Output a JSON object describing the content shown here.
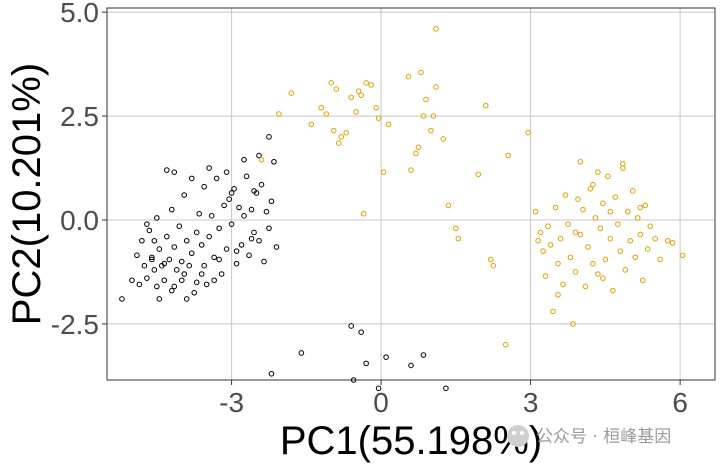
{
  "chart_data": {
    "type": "scatter",
    "xlabel": "PC1(55.198%)",
    "ylabel": "PC2(10.201%)",
    "xlim": [
      -5.5,
      6.7
    ],
    "ylim": [
      -3.85,
      5.1
    ],
    "xticks": [
      -3,
      0,
      3,
      6
    ],
    "xtick_labels": [
      "-3",
      "0",
      "3",
      "6"
    ],
    "yticks": [
      -2.5,
      0.0,
      2.5,
      5.0
    ],
    "ytick_labels": [
      "-2.5",
      "0.0",
      "2.5",
      "5.0"
    ],
    "grid": true,
    "legend": false,
    "marker": "open-circle",
    "series": [
      {
        "color": "#000000",
        "points": [
          [
            -5.2,
            -1.9
          ],
          [
            -5.0,
            -1.45
          ],
          [
            -4.9,
            -0.85
          ],
          [
            -4.8,
            -0.5
          ],
          [
            -4.75,
            -1.1
          ],
          [
            -4.7,
            -1.4
          ],
          [
            -4.65,
            -0.25
          ],
          [
            -4.6,
            -0.9
          ],
          [
            -4.55,
            -1.2
          ],
          [
            -4.5,
            -1.6
          ],
          [
            -4.5,
            0.05
          ],
          [
            -4.45,
            -0.7
          ],
          [
            -4.4,
            -1.1
          ],
          [
            -4.35,
            -1.45
          ],
          [
            -4.3,
            -0.4
          ],
          [
            -4.25,
            -0.95
          ],
          [
            -4.2,
            -1.7
          ],
          [
            -4.2,
            0.25
          ],
          [
            -4.15,
            -0.65
          ],
          [
            -4.1,
            -1.2
          ],
          [
            -4.05,
            -0.15
          ],
          [
            -4.0,
            -1.0
          ],
          [
            -4.0,
            -1.45
          ],
          [
            -3.95,
            0.6
          ],
          [
            -3.9,
            -0.5
          ],
          [
            -3.85,
            -1.1
          ],
          [
            -3.8,
            -0.8
          ],
          [
            -3.75,
            -1.75
          ],
          [
            -3.7,
            -0.3
          ],
          [
            -3.65,
            0.15
          ],
          [
            -3.6,
            -1.3
          ],
          [
            -3.6,
            -0.6
          ],
          [
            -3.55,
            0.8
          ],
          [
            -3.5,
            -1.55
          ],
          [
            -3.45,
            -0.4
          ],
          [
            -3.4,
            0.1
          ],
          [
            -3.35,
            -0.9
          ],
          [
            -3.3,
            1.0
          ],
          [
            -3.25,
            -0.2
          ],
          [
            -3.2,
            -1.3
          ],
          [
            -3.15,
            0.35
          ],
          [
            -3.1,
            -0.7
          ],
          [
            -3.05,
            0.5
          ],
          [
            -3.0,
            -0.1
          ],
          [
            -2.95,
            0.75
          ],
          [
            -2.9,
            -1.05
          ],
          [
            -2.85,
            0.3
          ],
          [
            -2.8,
            -0.6
          ],
          [
            -2.75,
            0.1
          ],
          [
            -2.7,
            1.05
          ],
          [
            -2.65,
            -0.85
          ],
          [
            -2.6,
            0.25
          ],
          [
            -2.55,
            -0.3
          ],
          [
            -2.5,
            0.65
          ],
          [
            -2.45,
            -0.5
          ],
          [
            -2.4,
            0.85
          ],
          [
            -2.35,
            -1.0
          ],
          [
            -2.3,
            0.2
          ],
          [
            -2.25,
            -0.2
          ],
          [
            -2.2,
            0.45
          ],
          [
            -2.15,
            1.4
          ],
          [
            -2.1,
            -0.65
          ],
          [
            -4.3,
            1.2
          ],
          [
            -4.15,
            1.15
          ],
          [
            -3.8,
            1.0
          ],
          [
            -3.45,
            1.25
          ],
          [
            -3.1,
            1.15
          ],
          [
            -2.75,
            1.45
          ],
          [
            -2.45,
            1.55
          ],
          [
            -2.25,
            2.0
          ],
          [
            -4.7,
            -0.1
          ],
          [
            -4.55,
            -0.5
          ],
          [
            -3.95,
            -1.3
          ],
          [
            -3.55,
            -1.1
          ],
          [
            -3.25,
            -0.95
          ],
          [
            -2.6,
            -0.45
          ],
          [
            -1.6,
            -3.2
          ],
          [
            -2.2,
            -3.7
          ],
          [
            -0.55,
            -3.85
          ],
          [
            -0.6,
            -2.55
          ],
          [
            -0.4,
            -2.7
          ],
          [
            -0.3,
            -3.45
          ],
          [
            -0.05,
            -4.05
          ],
          [
            0.1,
            -3.3
          ],
          [
            0.6,
            -3.5
          ],
          [
            0.85,
            -3.25
          ],
          [
            1.3,
            -4.05
          ],
          [
            -4.85,
            -1.55
          ],
          [
            -4.45,
            -1.9
          ],
          [
            -4.15,
            -1.6
          ],
          [
            -3.9,
            -1.9
          ],
          [
            -3.7,
            -1.5
          ],
          [
            -3.35,
            -1.45
          ],
          [
            -3.0,
            0.65
          ],
          [
            -2.9,
            -0.75
          ],
          [
            -2.55,
            0.7
          ],
          [
            -4.6,
            -0.95
          ],
          [
            -4.35,
            -1.05
          ]
        ]
      },
      {
        "color": "#E69F00",
        "points": [
          [
            -2.4,
            1.45
          ],
          [
            -2.05,
            2.55
          ],
          [
            -1.8,
            3.05
          ],
          [
            -1.4,
            2.3
          ],
          [
            -1.2,
            2.7
          ],
          [
            -1.1,
            2.55
          ],
          [
            -1.0,
            3.3
          ],
          [
            -0.95,
            2.15
          ],
          [
            -0.9,
            3.15
          ],
          [
            -0.85,
            1.85
          ],
          [
            -0.8,
            2.0
          ],
          [
            -0.7,
            2.1
          ],
          [
            -0.6,
            2.95
          ],
          [
            -0.5,
            2.6
          ],
          [
            -0.45,
            3.1
          ],
          [
            -0.4,
            3.0
          ],
          [
            -0.35,
            0.15
          ],
          [
            -0.3,
            3.3
          ],
          [
            -0.2,
            3.25
          ],
          [
            -0.1,
            2.7
          ],
          [
            -0.05,
            2.45
          ],
          [
            0.05,
            1.15
          ],
          [
            0.15,
            2.3
          ],
          [
            0.55,
            3.45
          ],
          [
            0.6,
            1.2
          ],
          [
            0.7,
            1.6
          ],
          [
            0.75,
            1.75
          ],
          [
            0.8,
            3.55
          ],
          [
            0.85,
            2.5
          ],
          [
            0.9,
            2.9
          ],
          [
            1.0,
            2.15
          ],
          [
            1.05,
            2.5
          ],
          [
            1.1,
            3.2
          ],
          [
            1.1,
            4.6
          ],
          [
            1.25,
            1.95
          ],
          [
            1.35,
            0.35
          ],
          [
            1.5,
            -0.2
          ],
          [
            1.55,
            -0.45
          ],
          [
            1.95,
            1.1
          ],
          [
            2.1,
            2.75
          ],
          [
            2.2,
            -0.95
          ],
          [
            2.25,
            -1.1
          ],
          [
            2.5,
            -3.0
          ],
          [
            2.55,
            1.55
          ],
          [
            2.95,
            2.1
          ],
          [
            3.1,
            0.2
          ],
          [
            3.15,
            -0.5
          ],
          [
            3.2,
            -0.3
          ],
          [
            3.25,
            -0.75
          ],
          [
            3.3,
            -1.35
          ],
          [
            3.35,
            -0.15
          ],
          [
            3.4,
            -0.6
          ],
          [
            3.45,
            -2.2
          ],
          [
            3.5,
            0.3
          ],
          [
            3.55,
            -1.05
          ],
          [
            3.6,
            -0.45
          ],
          [
            3.65,
            -1.55
          ],
          [
            3.7,
            0.6
          ],
          [
            3.75,
            -0.1
          ],
          [
            3.8,
            -0.9
          ],
          [
            3.85,
            -2.5
          ],
          [
            3.9,
            -1.25
          ],
          [
            3.95,
            0.5
          ],
          [
            4.0,
            -0.35
          ],
          [
            4.05,
            0.25
          ],
          [
            4.1,
            -1.6
          ],
          [
            4.15,
            -0.65
          ],
          [
            4.2,
            0.75
          ],
          [
            4.25,
            -1.05
          ],
          [
            4.3,
            0.05
          ],
          [
            4.35,
            -1.3
          ],
          [
            4.4,
            -0.2
          ],
          [
            4.45,
            0.4
          ],
          [
            4.5,
            -0.95
          ],
          [
            4.55,
            1.05
          ],
          [
            4.6,
            -0.45
          ],
          [
            4.65,
            -1.7
          ],
          [
            4.7,
            0.55
          ],
          [
            4.75,
            -0.1
          ],
          [
            4.8,
            -0.75
          ],
          [
            4.85,
            1.35
          ],
          [
            4.9,
            -1.2
          ],
          [
            4.95,
            0.2
          ],
          [
            5.0,
            -0.5
          ],
          [
            5.05,
            0.7
          ],
          [
            5.1,
            -0.9
          ],
          [
            5.15,
            0.05
          ],
          [
            5.2,
            -0.35
          ],
          [
            5.25,
            -1.45
          ],
          [
            5.3,
            0.35
          ],
          [
            5.35,
            -0.7
          ],
          [
            5.4,
            -0.15
          ],
          [
            5.5,
            -0.45
          ],
          [
            5.6,
            -0.95
          ],
          [
            5.75,
            -0.5
          ],
          [
            5.85,
            -0.55
          ],
          [
            6.05,
            -0.85
          ],
          [
            4.0,
            1.4
          ],
          [
            4.35,
            1.15
          ],
          [
            4.85,
            1.25
          ],
          [
            4.25,
            0.85
          ],
          [
            3.9,
            -0.3
          ],
          [
            4.6,
            0.2
          ],
          [
            5.2,
            0.3
          ],
          [
            3.55,
            -1.8
          ],
          [
            4.45,
            -1.4
          ]
        ]
      }
    ]
  },
  "watermark": {
    "text": "公众号 · 桓峰基因"
  }
}
